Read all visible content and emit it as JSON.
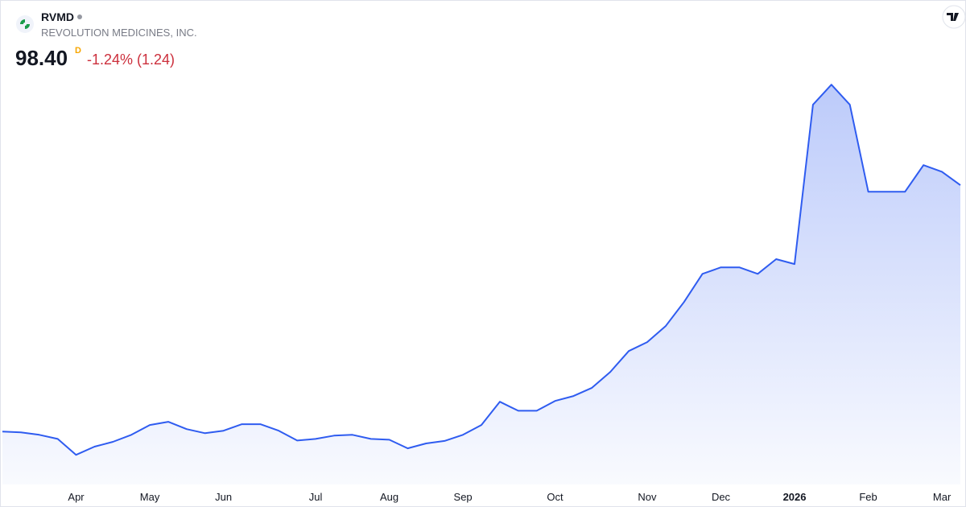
{
  "header": {
    "ticker": "RVMD",
    "company": "REVOLUTION MEDICINES, INC.",
    "price": "98.40",
    "interval": "D",
    "change": "-1.24% (1.24)"
  },
  "chart_data": {
    "type": "area",
    "color": "#2f5cf0",
    "categories": [
      null,
      null,
      null,
      null,
      "Apr",
      null,
      null,
      null,
      "May",
      null,
      null,
      null,
      "Jun",
      null,
      null,
      null,
      null,
      "Jul",
      null,
      null,
      null,
      "Aug",
      null,
      null,
      null,
      "Sep",
      null,
      null,
      null,
      null,
      "Oct",
      null,
      null,
      null,
      null,
      "Nov",
      null,
      null,
      null,
      "Dec",
      null,
      null,
      null,
      "2026",
      null,
      null,
      null,
      "Feb",
      null,
      null,
      null,
      "Mar",
      null
    ],
    "values": [
      38.1,
      37.9,
      37.3,
      36.3,
      32.4,
      34.4,
      35.6,
      37.3,
      39.7,
      40.5,
      38.7,
      37.7,
      38.3,
      39.9,
      39.9,
      38.3,
      35.9,
      36.3,
      37.1,
      37.3,
      36.3,
      36.1,
      34.0,
      35.2,
      35.8,
      37.3,
      39.7,
      45.4,
      43.2,
      43.2,
      45.6,
      46.8,
      48.8,
      52.7,
      57.8,
      60.0,
      63.9,
      69.8,
      76.7,
      78.3,
      78.3,
      76.7,
      80.3,
      79.1,
      118.1,
      123.0,
      118.1,
      96.8,
      96.8,
      96.8,
      103.3,
      101.7,
      98.4
    ],
    "ylim": [
      22,
      126
    ]
  }
}
